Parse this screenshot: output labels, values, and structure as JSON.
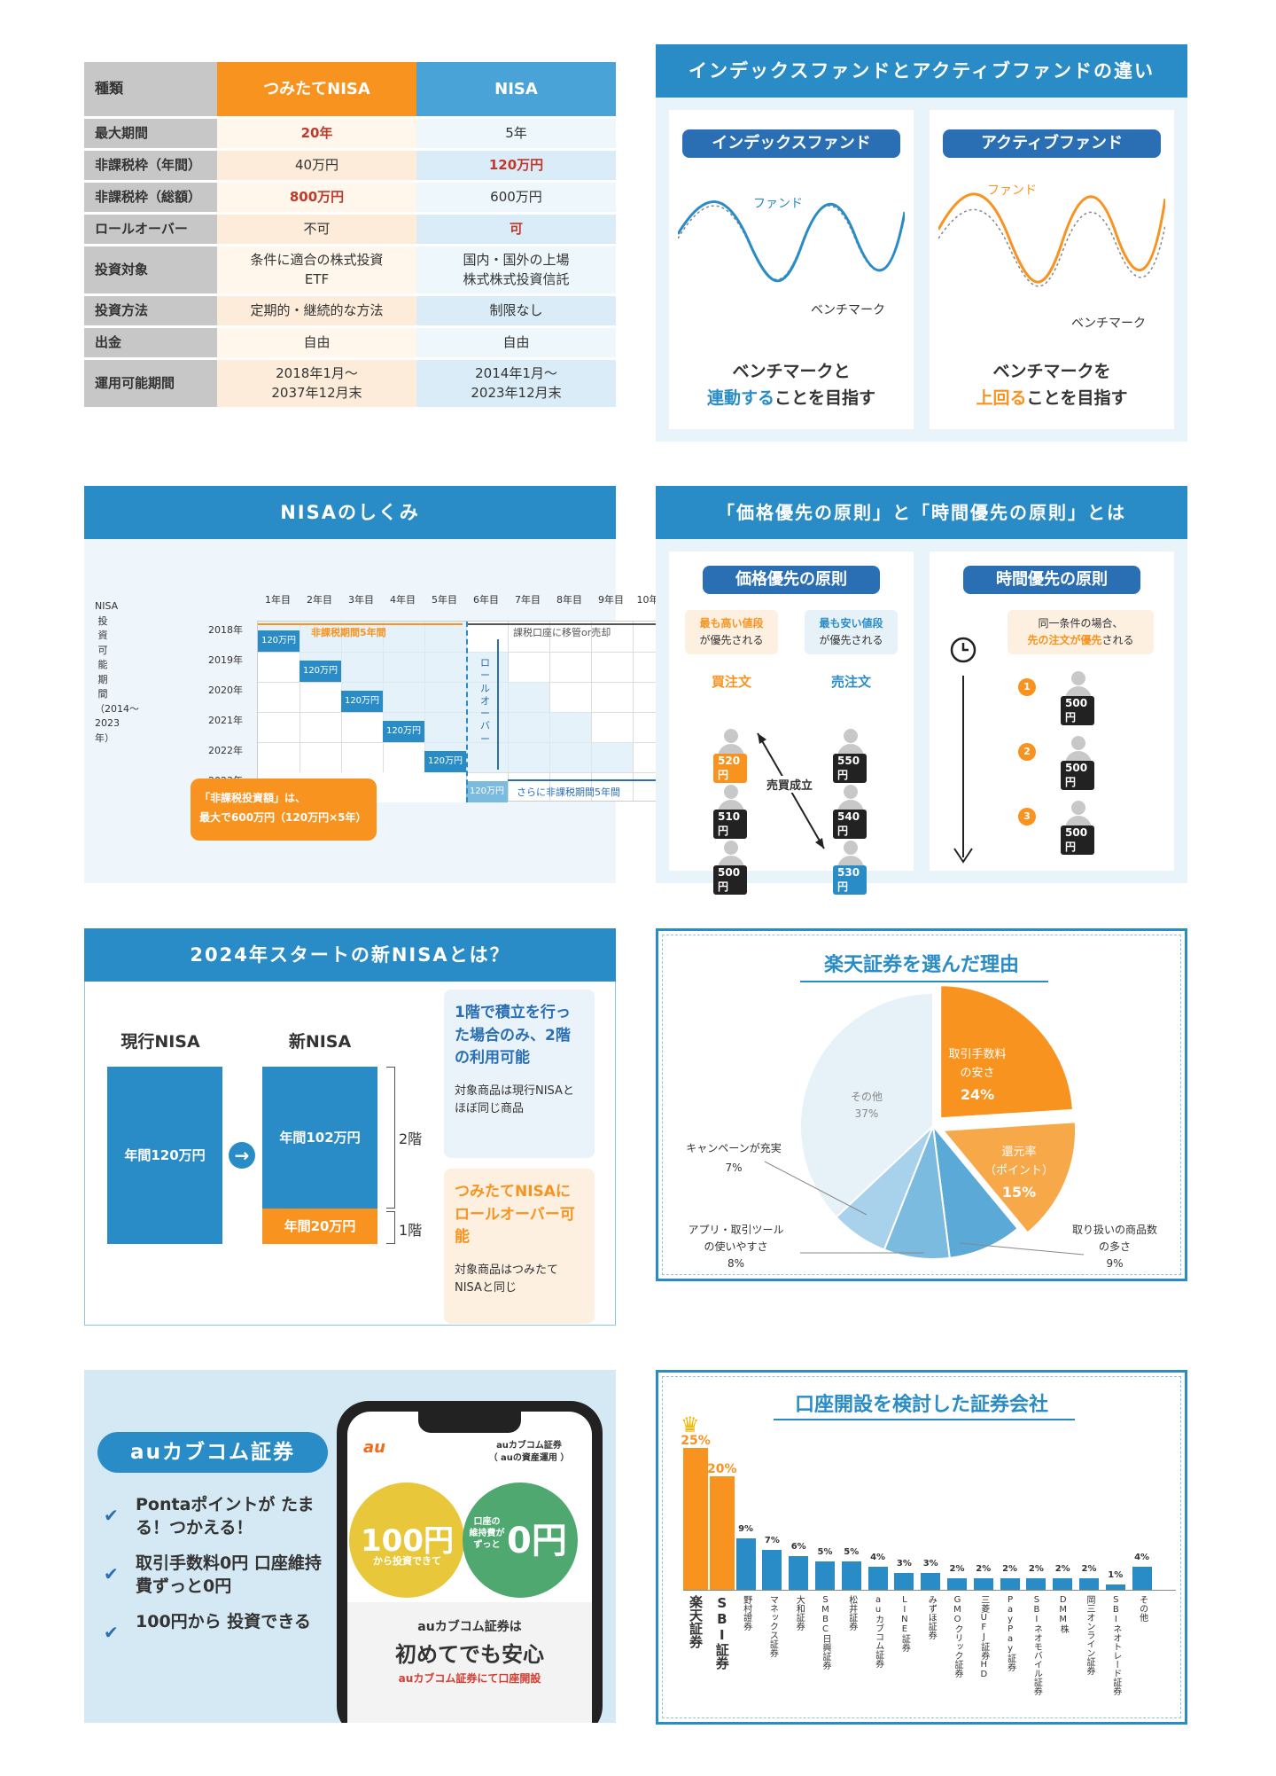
{
  "table": {
    "head": [
      "種類",
      "つみたてNISA",
      "NISA"
    ],
    "rows": [
      {
        "k": "最大期間",
        "a": "20年",
        "b": "5年"
      },
      {
        "k": "非課税枠（年間）",
        "a": "40万円",
        "b": "120万円"
      },
      {
        "k": "非課税枠（総額）",
        "a": "800万円",
        "b": "600万円"
      },
      {
        "k": "ロールオーバー",
        "a": "不可",
        "b": "可"
      },
      {
        "k": "投資対象",
        "a1": "条件に適合の株式投資",
        "a2": "ETF",
        "b1": "国内・国外の上場",
        "b2": "株式株式投資信託"
      },
      {
        "k": "投資方法",
        "a": "定期的・継続的な方法",
        "b": "制限なし"
      },
      {
        "k": "出金",
        "a": "自由",
        "b": "自由"
      },
      {
        "k": "運用可能期間",
        "a1": "2018年1月〜",
        "a2": "2037年12月末",
        "b1": "2014年1月〜",
        "b2": "2023年12月末"
      }
    ]
  },
  "fund": {
    "title": "インデックスファンドとアクティブファンドの違い",
    "index_label": "インデックスファンド",
    "active_label": "アクティブファンド",
    "fund": "ファンド",
    "bench": "ベンチマーク",
    "index_l1": "ベンチマークと",
    "index_hl": "連動する",
    "index_l2": "ことを目指す",
    "active_l1": "ベンチマークを",
    "active_hl": "上回る",
    "active_l2": "ことを目指す",
    "colors": {
      "index": "#2a8cc7",
      "active": "#f7931e"
    }
  },
  "nisa": {
    "title": "NISAのしくみ",
    "years": [
      "1年目",
      "2年目",
      "3年目",
      "4年目",
      "5年目",
      "6年目",
      "7年目",
      "8年目",
      "9年目",
      "10年目"
    ],
    "rows": [
      "2018年",
      "2019年",
      "2020年",
      "2021年",
      "2022年",
      "2023年"
    ],
    "side": "NISA投資可能期間（2014〜2023年）",
    "amt": "120万円",
    "p5": "非課税期間5年間",
    "move": "課税口座に移管or売却",
    "roll": "ロールオーバー",
    "more": "さらに非課税期間5年間",
    "note1": "「非課税投資額」は、",
    "note2": "最大で600万円（120万円×5年）"
  },
  "principle": {
    "title": "「価格優先の原則」と「時間優先の原則」とは",
    "price": "価格優先の原則",
    "time": "時間優先の原則",
    "buy_note1": "最も高い値段",
    "buy_note2": "が優先される",
    "sell_note1": "最も安い値段",
    "sell_note2": "が優先される",
    "buy": "買注文",
    "sell": "売注文",
    "buy_prices": [
      "520円",
      "510円",
      "500円"
    ],
    "sell_prices": [
      "550円",
      "540円",
      "530円"
    ],
    "deal": "売買成立",
    "time_note1": "同一条件の場合、",
    "time_note2": "先の注文が優先",
    "time_note3": "される",
    "orders": [
      "1",
      "2",
      "3"
    ],
    "time_prices": [
      "500円",
      "500円",
      "500円"
    ]
  },
  "newnisa": {
    "title": "2024年スタートの新NISAとは？",
    "current": "現行NISA",
    "new": "新NISA",
    "current_amt": "年間120万円",
    "f2_amt": "年間102万円",
    "f1_amt": "年間20万円",
    "f2": "2階",
    "f1": "1階",
    "box1_title": "1階で積立を行った場合のみ、2階の利用可能",
    "box1_body": "対象商品は現行NISAとほぼ同じ商品",
    "box2_title": "つみたてNISAにロールオーバー可能",
    "box2_body": "対象商品はつみたてNISAと同じ"
  },
  "reasons": {
    "title": "楽天証券を選んだ理由",
    "chart_data": {
      "type": "pie",
      "slices": [
        {
          "label": "取引手数料の安さ",
          "value": 24,
          "color": "#f7931e"
        },
        {
          "label": "還元率（ポイント）",
          "value": 15,
          "color": "#f7a94a"
        },
        {
          "label": "取り扱いの商品数の多さ",
          "value": 9,
          "color": "#5aa9d6"
        },
        {
          "label": "アプリ・取引ツールの使いやすさ",
          "value": 8,
          "color": "#7bbbe0"
        },
        {
          "label": "キャンペーンが充実",
          "value": 7,
          "color": "#a8d1ec"
        },
        {
          "label": "その他",
          "value": 37,
          "color": "#e6f1f8"
        }
      ]
    },
    "l_fee1": "取引手数料",
    "l_fee2": "の安さ",
    "v_fee": "24%",
    "l_pt1": "還元率",
    "l_pt2": "（ポイント）",
    "v_pt": "15%",
    "l_items1": "取り扱いの商品数",
    "l_items2": "の多さ",
    "v_items": "9%",
    "l_app1": "アプリ・取引ツール",
    "l_app2": "の使いやすさ",
    "v_app": "8%",
    "l_camp": "キャンペーンが充実",
    "v_camp": "7%",
    "l_other": "その他",
    "v_other": "37%"
  },
  "au": {
    "brand": "auカブコム証券",
    "points": [
      "Pontaポイントが たまる！つかえる！",
      "取引手数料0円 口座維持費ずっと0円",
      "100円から 投資できる"
    ],
    "phone_logo": "au",
    "phone_title1": "auカブコム証券",
    "phone_title2": "（ auの資産運用 ）",
    "c1_big": "100円",
    "c1_small": "から投資できて",
    "c2_small1": "口座の",
    "c2_small2": "維持費が",
    "c2_small3": "ずっと",
    "c2_big": "0円",
    "bottom1": "auカブコム証券は",
    "bottom2": "初めてでも安心",
    "bottom3": "auカブコム証券にて口座開設"
  },
  "brokers": {
    "title": "口座開設を検討した証券会社",
    "chart_data": {
      "type": "bar",
      "categories": [
        "楽天証券",
        "SBI証券",
        "野村證券",
        "マネックス証券",
        "大和証券",
        "SMBC日興証券",
        "松井証券",
        "auカブコム証券",
        "LINE証券",
        "みずほ証券",
        "GMOクリック証券",
        "三菱UFJ証券HD",
        "PayPay証券",
        "SBIネオモバイル証券",
        "DMM株",
        "岡三オンライン証券",
        "SBIネオトレード証券",
        "その他"
      ],
      "values": [
        25,
        20,
        9,
        7,
        6,
        5,
        5,
        4,
        3,
        3,
        2,
        2,
        2,
        2,
        2,
        2,
        1,
        4
      ],
      "labels": [
        "25%",
        "20%",
        "9%",
        "7%",
        "6%",
        "5%",
        "5%",
        "4%",
        "3%",
        "3%",
        "2%",
        "2%",
        "2%",
        "2%",
        "2%",
        "2%",
        "1%",
        "4%"
      ],
      "colors": {
        "top": "#f7931e",
        "rest": "#2a8cc7"
      }
    }
  }
}
